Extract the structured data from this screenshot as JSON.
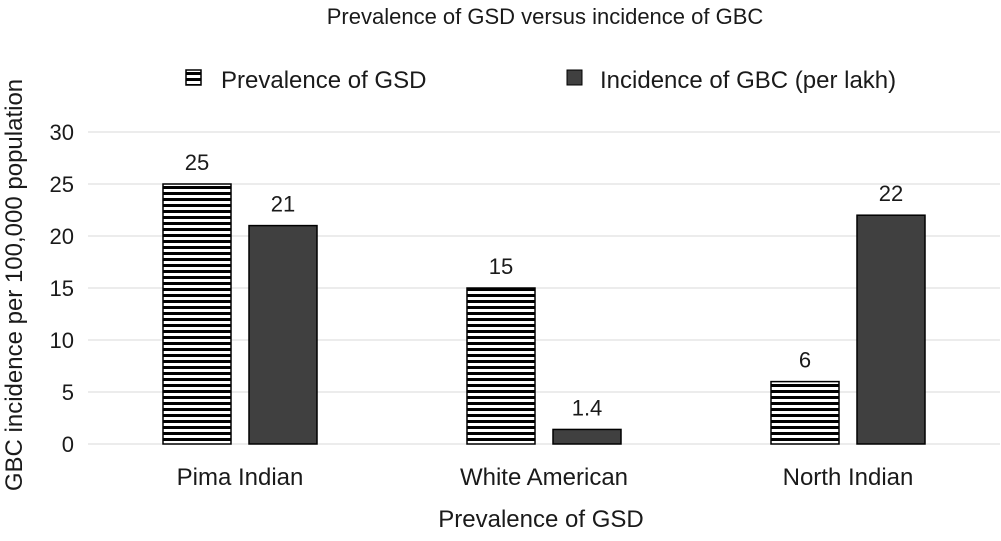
{
  "chart_data": {
    "type": "bar",
    "title": "Prevalence of GSD versus incidence of GBC",
    "xlabel": "Prevalence of GSD",
    "ylabel": "GBC incidence per 100,000 population",
    "categories": [
      "Pima Indian",
      "White American",
      "North Indian"
    ],
    "series": [
      {
        "name": "Prevalence of GSD",
        "values": [
          25,
          15,
          6
        ],
        "pattern": "horizontal-stripes",
        "color": "#000000"
      },
      {
        "name": "Incidence of GBC (per lakh)",
        "values": [
          21,
          1.4,
          22
        ],
        "pattern": "solid",
        "color": "#404040"
      }
    ],
    "data_labels": [
      [
        "25",
        "15",
        "6"
      ],
      [
        "21",
        "1.4",
        "22"
      ]
    ],
    "ylim": [
      0,
      30
    ],
    "yticks": [
      0,
      5,
      10,
      15,
      20,
      25,
      30
    ],
    "ytick_labels": [
      "0",
      "5",
      "10",
      "15",
      "20",
      "25",
      "30"
    ],
    "grid": true,
    "legend_position": "top"
  }
}
